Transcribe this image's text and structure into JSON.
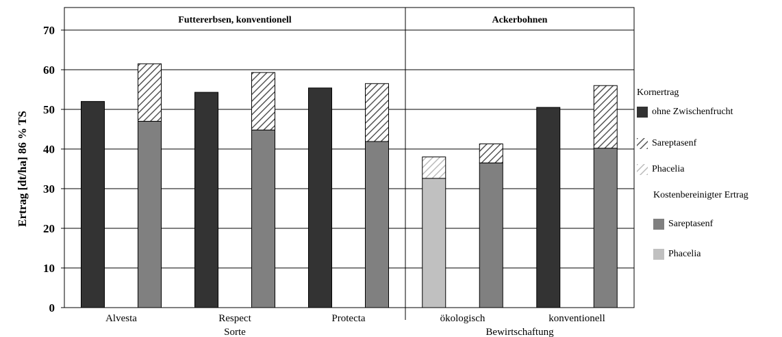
{
  "colors": {
    "ohne_zwischenfrucht": "#333333",
    "sareptasenf_kostenbereinigt": "#808080",
    "phacelia_kostenbereinigt": "#c0c0c0",
    "hatch_dark": "#555555",
    "hatch_light": "#bbbbbb"
  },
  "chart_data": {
    "type": "bar",
    "ylabel": "Ertrag [dt/ha] 86 % TS",
    "ylim": [
      0,
      70
    ],
    "yticks": [
      0,
      10,
      20,
      30,
      40,
      50,
      60,
      70
    ],
    "grid": true,
    "legend_placement": "right",
    "panels": [
      {
        "title": "Futtererbsen, konventionell",
        "xlabel": "Sorte",
        "groups": [
          {
            "label": "Alvesta",
            "bars": [
              {
                "base": 52.0,
                "base_series": "ohne Zwischenfrucht"
              },
              {
                "base": 47.0,
                "base_series": "Sareptasenf (Kostenbereinigter Ertrag)",
                "top": 61.5,
                "top_series": "Sareptasenf (Kornertrag)"
              }
            ]
          },
          {
            "label": "Respect",
            "bars": [
              {
                "base": 54.3,
                "base_series": "ohne Zwischenfrucht"
              },
              {
                "base": 44.8,
                "base_series": "Sareptasenf (Kostenbereinigter Ertrag)",
                "top": 59.3,
                "top_series": "Sareptasenf (Kornertrag)"
              }
            ]
          },
          {
            "label": "Protecta",
            "bars": [
              {
                "base": 55.4,
                "base_series": "ohne Zwischenfrucht"
              },
              {
                "base": 41.9,
                "base_series": "Sareptasenf (Kostenbereinigter Ertrag)",
                "top": 56.5,
                "top_series": "Sareptasenf (Kornertrag)"
              }
            ]
          }
        ]
      },
      {
        "title": "Ackerbohnen",
        "xlabel": "Bewirtschaftung",
        "groups": [
          {
            "label": "ökologisch",
            "bars": [
              {
                "base": 32.6,
                "base_series": "Phacelia (Kostenbereinigter Ertrag)",
                "top": 38.0,
                "top_series": "Phacelia (Kornertrag)"
              },
              {
                "base": 36.5,
                "base_series": "Sareptasenf (Kostenbereinigter Ertrag)",
                "top": 41.3,
                "top_series": "Sareptasenf (Kornertrag)"
              }
            ]
          },
          {
            "label": "konventionell",
            "bars": [
              {
                "base": 50.5,
                "base_series": "ohne Zwischenfrucht"
              },
              {
                "base": 40.2,
                "base_series": "Sareptasenf (Kostenbereinigter Ertrag)",
                "top": 56.0,
                "top_series": "Sareptasenf (Kornertrag)"
              }
            ]
          }
        ]
      }
    ]
  },
  "legend": {
    "header_kornertrag": "Kornertrag",
    "item_ohne": "ohne Zwischenfrucht",
    "item_sareptasenf_korn": "Sareptasenf",
    "item_phacelia_korn": "Phacelia",
    "header_kostenbereinigt": "Kostenbereinigter Ertrag",
    "item_sareptasenf_kosten": "Sareptasenf",
    "item_phacelia_kosten": "Phacelia"
  }
}
